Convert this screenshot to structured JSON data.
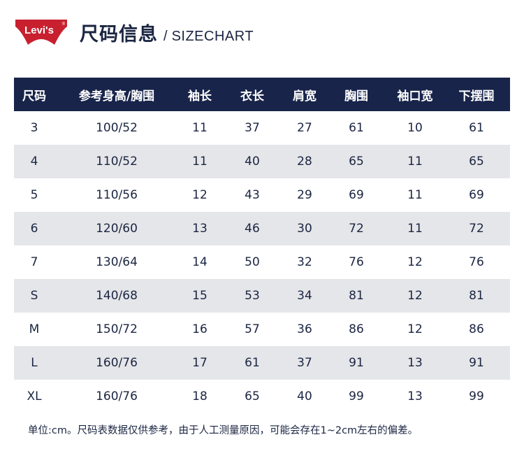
{
  "brand": {
    "logo_text": "Levi's",
    "logo_color": "#c8202f"
  },
  "header": {
    "title_cn": "尺码信息",
    "separator": "/",
    "title_en": "SIZECHART"
  },
  "colors": {
    "header_bg": "#18244a",
    "header_text": "#ffffff",
    "row_alt_bg": "#e5e6e9",
    "text": "#1b2542"
  },
  "table": {
    "columns": [
      "尺码",
      "参考身高/胸围",
      "袖长",
      "衣长",
      "肩宽",
      "胸围",
      "袖口宽",
      "下摆围"
    ],
    "rows": [
      [
        "3",
        "100/52",
        "11",
        "37",
        "27",
        "61",
        "10",
        "61"
      ],
      [
        "4",
        "110/52",
        "11",
        "40",
        "28",
        "65",
        "11",
        "65"
      ],
      [
        "5",
        "110/56",
        "12",
        "43",
        "29",
        "69",
        "11",
        "69"
      ],
      [
        "6",
        "120/60",
        "13",
        "46",
        "30",
        "72",
        "11",
        "72"
      ],
      [
        "7",
        "130/64",
        "14",
        "50",
        "32",
        "76",
        "12",
        "76"
      ],
      [
        "S",
        "140/68",
        "15",
        "53",
        "34",
        "81",
        "12",
        "81"
      ],
      [
        "M",
        "150/72",
        "16",
        "57",
        "36",
        "86",
        "12",
        "86"
      ],
      [
        "L",
        "160/76",
        "17",
        "61",
        "37",
        "91",
        "13",
        "91"
      ],
      [
        "XL",
        "160/76",
        "18",
        "65",
        "40",
        "99",
        "13",
        "99"
      ]
    ]
  },
  "footnote": "单位:cm。尺码表数据仅供参考，由于人工测量原因，可能会存在1~2cm左右的偏差。"
}
